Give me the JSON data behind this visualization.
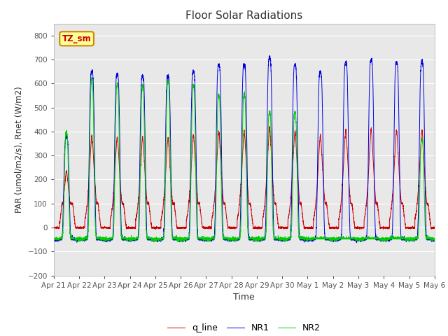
{
  "title": "Floor Solar Radiations",
  "xlabel": "Time",
  "ylabel": "PAR (umol/m2/s), Rnet (W/m2)",
  "ylim": [
    -200,
    850
  ],
  "yticks": [
    -200,
    -100,
    0,
    100,
    200,
    300,
    400,
    500,
    600,
    700,
    800
  ],
  "bg_color": "#e8e8e8",
  "line_colors": {
    "q_line": "#cc0000",
    "NR1": "#0000dd",
    "NR2": "#00cc00"
  },
  "legend_labels": [
    "q_line",
    "NR1",
    "NR2"
  ],
  "annotation_text": "TZ_sm",
  "annotation_bg": "#ffff99",
  "annotation_border": "#cc8800",
  "annotation_text_color": "#cc0000",
  "n_days": 15,
  "points_per_day": 288,
  "grid_color": "#ffffff"
}
